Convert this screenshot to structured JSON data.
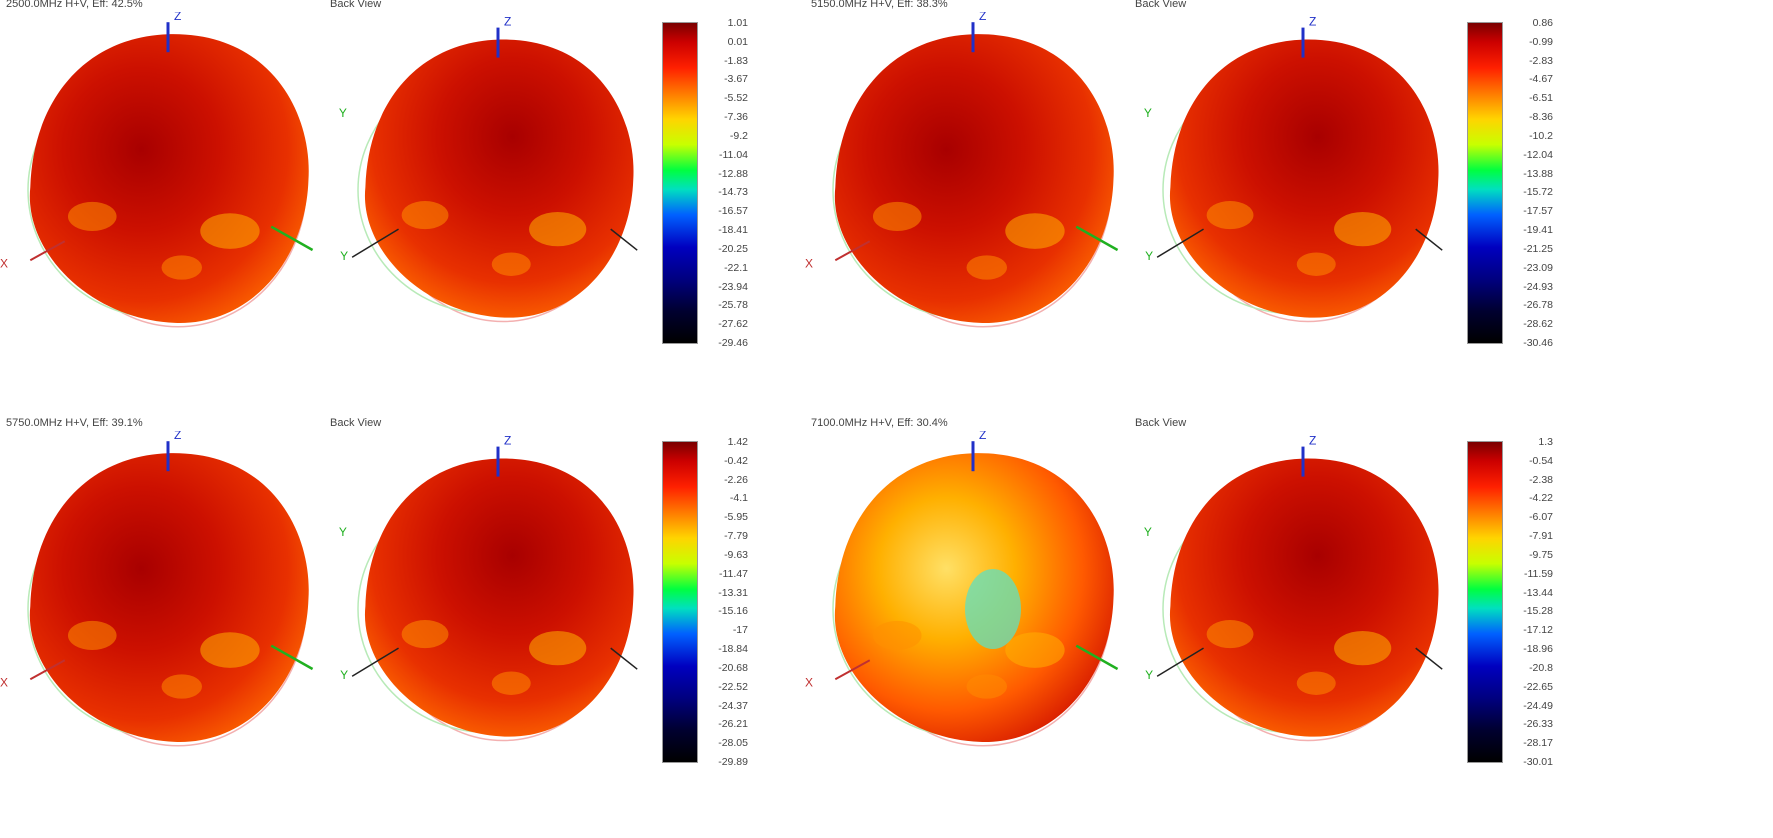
{
  "panels": [
    {
      "title": "2500.0MHz H+V, Eff: 42.5%",
      "back_label": "Back View",
      "scale": [
        "1.01",
        "0.01",
        "-1.83",
        "-3.67",
        "-5.52",
        "-7.36",
        "-9.2",
        "-11.04",
        "-12.88",
        "-14.73",
        "-16.57",
        "-18.41",
        "-20.25",
        "-22.1",
        "-23.94",
        "-25.78",
        "-27.62",
        "-29.46"
      ]
    },
    {
      "title": "5150.0MHz H+V, Eff: 38.3%",
      "back_label": "Back View",
      "scale": [
        "0.86",
        "-0.99",
        "-2.83",
        "-4.67",
        "-6.51",
        "-8.36",
        "-10.2",
        "-12.04",
        "-13.88",
        "-15.72",
        "-17.57",
        "-19.41",
        "-21.25",
        "-23.09",
        "-24.93",
        "-26.78",
        "-28.62",
        "-30.46"
      ]
    },
    {
      "title": "5750.0MHz H+V, Eff: 39.1%",
      "back_label": "Back View",
      "scale": [
        "1.42",
        "-0.42",
        "-2.26",
        "-4.1",
        "-5.95",
        "-7.79",
        "-9.63",
        "-11.47",
        "-13.31",
        "-15.16",
        "-17",
        "-18.84",
        "-20.68",
        "-22.52",
        "-24.37",
        "-26.21",
        "-28.05",
        "-29.89"
      ]
    },
    {
      "title": "7100.0MHz H+V, Eff: 30.4%",
      "back_label": "Back View",
      "scale": [
        "1.3",
        "-0.54",
        "-2.38",
        "-4.22",
        "-6.07",
        "-7.91",
        "-9.75",
        "-11.59",
        "-13.44",
        "-15.28",
        "-17.12",
        "-18.96",
        "-20.8",
        "-22.65",
        "-24.49",
        "-26.33",
        "-28.17",
        "-30.01"
      ]
    }
  ],
  "axes": {
    "x": "X",
    "y": "Y",
    "z": "Z"
  },
  "colors": {
    "deep_red": "#9e0000",
    "red": "#e01a00",
    "orange": "#ff7a00",
    "yellow": "#ffd400",
    "cyan": "#40e0d0"
  }
}
